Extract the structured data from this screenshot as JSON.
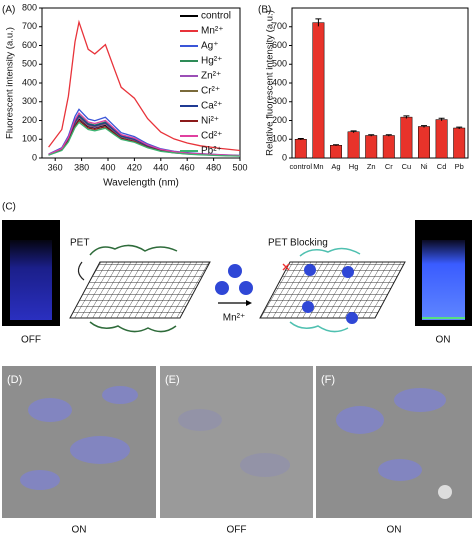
{
  "chart_data": [
    {
      "type": "line",
      "panel_label": "(A)",
      "x_label": "Wavelength (nm)",
      "y_label": "Fluorescent intensity (a.u.)",
      "x": [
        355,
        365,
        370,
        375,
        378,
        385,
        390,
        398,
        405,
        410,
        420,
        430,
        440,
        450,
        460,
        470,
        485,
        500
      ],
      "xlim": [
        350,
        500
      ],
      "xticks": [
        360,
        380,
        400,
        420,
        440,
        460,
        480,
        500
      ],
      "ylim": [
        0,
        800
      ],
      "yticks": [
        0,
        100,
        200,
        300,
        400,
        500,
        600,
        700,
        800
      ],
      "series": [
        {
          "name": "control",
          "color": "#000000",
          "values": [
            17,
            44,
            96,
            180,
            210,
            168,
            161,
            175,
            137,
            109,
            92,
            61,
            40,
            29,
            23,
            19,
            15,
            12
          ]
        },
        {
          "name": "Mn²⁺",
          "color": "#e8333a",
          "values": [
            58,
            152,
            330,
            620,
            725,
            580,
            555,
            605,
            471,
            377,
            319,
            210,
            138,
            102,
            80,
            65,
            51,
            40
          ]
        },
        {
          "name": "Ag⁺",
          "color": "#3a55d8",
          "values": [
            21,
            55,
            118,
            222,
            260,
            208,
            199,
            217,
            169,
            135,
            114,
            75,
            49,
            36,
            29,
            23,
            18,
            14
          ]
        },
        {
          "name": "Hg²⁺",
          "color": "#2e8b57",
          "values": [
            18,
            48,
            105,
            197,
            230,
            184,
            176,
            192,
            150,
            120,
            101,
            67,
            44,
            32,
            25,
            21,
            16,
            13
          ]
        },
        {
          "name": "Zn²⁺",
          "color": "#9b4fb6",
          "values": [
            17,
            45,
            98,
            184,
            215,
            172,
            164,
            180,
            140,
            112,
            95,
            62,
            41,
            30,
            24,
            19,
            15,
            12
          ]
        },
        {
          "name": "Cr²⁺",
          "color": "#7a6a3a",
          "values": [
            18,
            46,
            100,
            188,
            220,
            176,
            168,
            184,
            143,
            114,
            97,
            64,
            42,
            31,
            24,
            20,
            15,
            12
          ]
        },
        {
          "name": "Ca²⁺",
          "color": "#1f3a93",
          "values": [
            18,
            47,
            102,
            192,
            225,
            180,
            172,
            188,
            146,
            117,
            99,
            65,
            43,
            32,
            25,
            20,
            16,
            12
          ]
        },
        {
          "name": "Ni²⁺",
          "color": "#8b1a1a",
          "values": [
            16,
            42,
            91,
            171,
            200,
            160,
            153,
            167,
            130,
            104,
            88,
            58,
            38,
            28,
            22,
            18,
            14,
            11
          ]
        },
        {
          "name": "Cd²⁺",
          "color": "#e040a0",
          "values": [
            19,
            50,
            109,
            205,
            240,
            192,
            184,
            200,
            156,
            125,
            106,
            70,
            46,
            34,
            26,
            22,
            17,
            13
          ]
        },
        {
          "name": "Pb²⁺",
          "color": "#3cb371",
          "values": [
            15,
            40,
            86,
            162,
            190,
            152,
            145,
            159,
            124,
            99,
            84,
            55,
            36,
            27,
            21,
            17,
            13,
            10
          ]
        }
      ]
    },
    {
      "type": "bar",
      "panel_label": "(B)",
      "y_label": "Relative fluorescent intensity (a.u.)",
      "categories": [
        "control",
        "Mn",
        "Ag",
        "Hg",
        "Zn",
        "Cr",
        "Cu",
        "Ni",
        "Cd",
        "Pb"
      ],
      "values": [
        100,
        722,
        68,
        140,
        120,
        120,
        218,
        168,
        205,
        160
      ],
      "errors": [
        4,
        20,
        3,
        5,
        4,
        4,
        7,
        5,
        7,
        5
      ],
      "color": "#e8332a",
      "ylim": [
        0,
        800
      ],
      "yticks": [
        0,
        100,
        200,
        300,
        400,
        500,
        600,
        700
      ]
    }
  ],
  "panel_c": {
    "label": "(C)",
    "pet": "PET",
    "pet_blocking": "PET Blocking",
    "ion": "Mn²⁺",
    "off": "OFF",
    "on": "ON"
  },
  "cell_panels": [
    {
      "label": "(D)",
      "caption": "ON"
    },
    {
      "label": "(E)",
      "caption": "OFF"
    },
    {
      "label": "(F)",
      "caption": "ON"
    }
  ]
}
